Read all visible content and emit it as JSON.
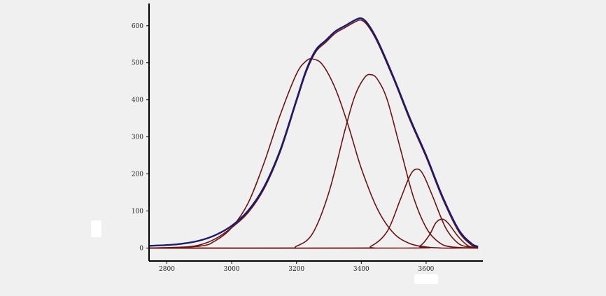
{
  "chart_data": {
    "type": "line",
    "title": "",
    "xlabel": "",
    "ylabel": "",
    "xlim": [
      2745,
      3775
    ],
    "ylim": [
      -35,
      660
    ],
    "x_ticks": [
      2800,
      3000,
      3200,
      3400,
      3600
    ],
    "y_ticks": [
      0,
      100,
      200,
      300,
      400,
      500,
      600
    ],
    "grid": false,
    "legend": "none",
    "colors": {
      "measured": "#1a1a6e",
      "components": "#6b1414",
      "axes": "#000000"
    },
    "series": [
      {
        "kind": "measured",
        "x": [
          2745,
          2800,
          2850,
          2900,
          2950,
          3000,
          3050,
          3100,
          3150,
          3200,
          3230,
          3260,
          3290,
          3320,
          3350,
          3380,
          3400,
          3420,
          3450,
          3500,
          3550,
          3600,
          3650,
          3700,
          3740,
          3760
        ],
        "y": [
          6,
          8,
          12,
          20,
          35,
          60,
          100,
          165,
          265,
          400,
          480,
          535,
          560,
          585,
          600,
          615,
          620,
          605,
          560,
          460,
          350,
          250,
          140,
          50,
          12,
          4
        ]
      },
      {
        "kind": "fit",
        "x": [
          2745,
          2800,
          2850,
          2900,
          2950,
          3000,
          3050,
          3100,
          3150,
          3200,
          3230,
          3260,
          3290,
          3320,
          3350,
          3380,
          3400,
          3420,
          3450,
          3500,
          3550,
          3600,
          3650,
          3700,
          3740,
          3760
        ],
        "y": [
          0,
          0,
          2,
          8,
          25,
          55,
          95,
          160,
          260,
          395,
          475,
          530,
          555,
          580,
          595,
          610,
          615,
          600,
          555,
          455,
          345,
          245,
          135,
          45,
          8,
          2
        ]
      },
      {
        "kind": "component",
        "x": [
          2745,
          2900,
          2950,
          3000,
          3050,
          3100,
          3150,
          3200,
          3230,
          3250,
          3280,
          3320,
          3360,
          3400,
          3450,
          3500,
          3550,
          3600,
          3650,
          3700,
          3760
        ],
        "y": [
          0,
          5,
          20,
          55,
          120,
          230,
          360,
          470,
          505,
          510,
          495,
          430,
          330,
          215,
          105,
          40,
          12,
          3,
          0,
          0,
          0
        ]
      },
      {
        "kind": "component",
        "x": [
          2745,
          3150,
          3200,
          3250,
          3300,
          3350,
          3380,
          3410,
          3430,
          3450,
          3480,
          3520,
          3560,
          3600,
          3640,
          3680,
          3760
        ],
        "y": [
          0,
          0,
          5,
          40,
          150,
          320,
          410,
          460,
          468,
          455,
          400,
          270,
          140,
          55,
          15,
          3,
          0
        ]
      },
      {
        "kind": "component",
        "x": [
          2745,
          3380,
          3430,
          3480,
          3520,
          3550,
          3570,
          3590,
          3620,
          3660,
          3700,
          3740,
          3760
        ],
        "y": [
          0,
          0,
          5,
          45,
          130,
          195,
          213,
          200,
          140,
          55,
          12,
          2,
          0
        ]
      },
      {
        "kind": "component",
        "x": [
          2745,
          3540,
          3580,
          3610,
          3630,
          3650,
          3670,
          3700,
          3730,
          3760
        ],
        "y": [
          0,
          0,
          5,
          35,
          68,
          78,
          65,
          30,
          6,
          0
        ]
      }
    ]
  }
}
